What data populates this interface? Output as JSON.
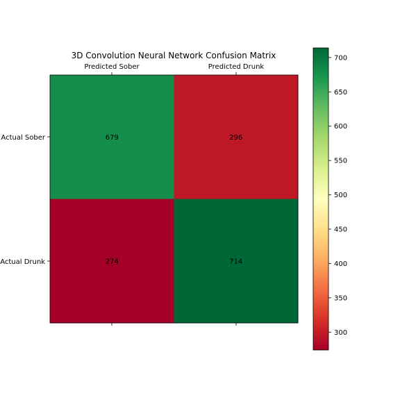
{
  "chart_data": {
    "type": "heatmap",
    "title": "3D Convolution Neural Network Confusion Matrix",
    "x_categories": [
      "Predicted Sober",
      "Predicted Drunk"
    ],
    "y_categories": [
      "Actual Sober",
      "Actual Drunk"
    ],
    "values": [
      [
        679,
        296
      ],
      [
        274,
        714
      ]
    ],
    "colormap": "RdYlGn",
    "colorbar": {
      "range": [
        274,
        714
      ],
      "ticks": [
        300,
        350,
        400,
        450,
        500,
        550,
        600,
        650,
        700
      ],
      "tick_labels": [
        "300",
        "350",
        "400",
        "450",
        "500",
        "550",
        "600",
        "650",
        "700"
      ]
    },
    "xaxis_position": "top",
    "grid": false
  }
}
